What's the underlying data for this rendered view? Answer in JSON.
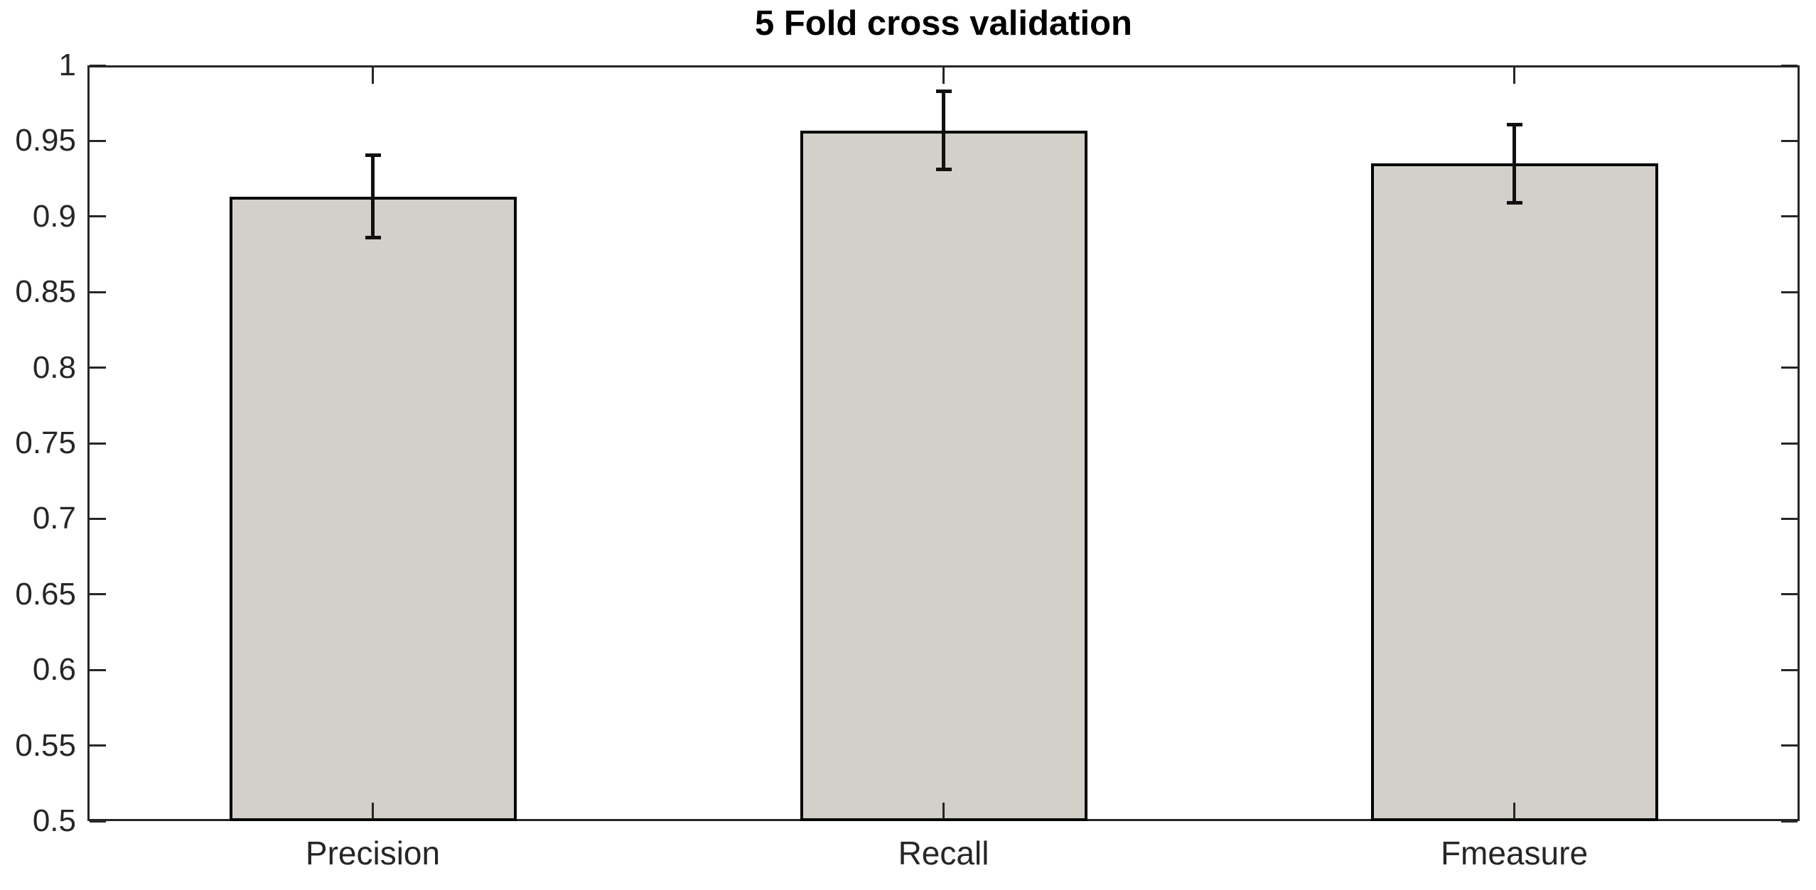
{
  "chart_data": {
    "type": "bar",
    "title": "5 Fold cross validation",
    "categories": [
      "Precision",
      "Recall",
      "Fmeasure"
    ],
    "values": [
      0.913,
      0.957,
      0.935
    ],
    "error_low": [
      0.886,
      0.931,
      0.909
    ],
    "error_high": [
      0.941,
      0.983,
      0.961
    ],
    "xlabel": "",
    "ylabel": "",
    "ylim": [
      0.5,
      1.0
    ],
    "yticks": [
      0.5,
      0.55,
      0.6,
      0.65,
      0.7,
      0.75,
      0.8,
      0.85,
      0.9,
      0.95,
      1
    ],
    "ytick_labels": [
      "0.5",
      "0.55",
      "0.6",
      "0.65",
      "0.7",
      "0.75",
      "0.8",
      "0.85",
      "0.9",
      "0.95",
      "1"
    ],
    "grid": false,
    "box": true,
    "tick_direction": "in",
    "legend": "none",
    "bar_color": "#d3cfc9",
    "bar_edge_color": "#000000",
    "error_bar_color": "#111111",
    "axis_color": "#262626",
    "title_color": "#000000",
    "background": "#ffffff"
  }
}
